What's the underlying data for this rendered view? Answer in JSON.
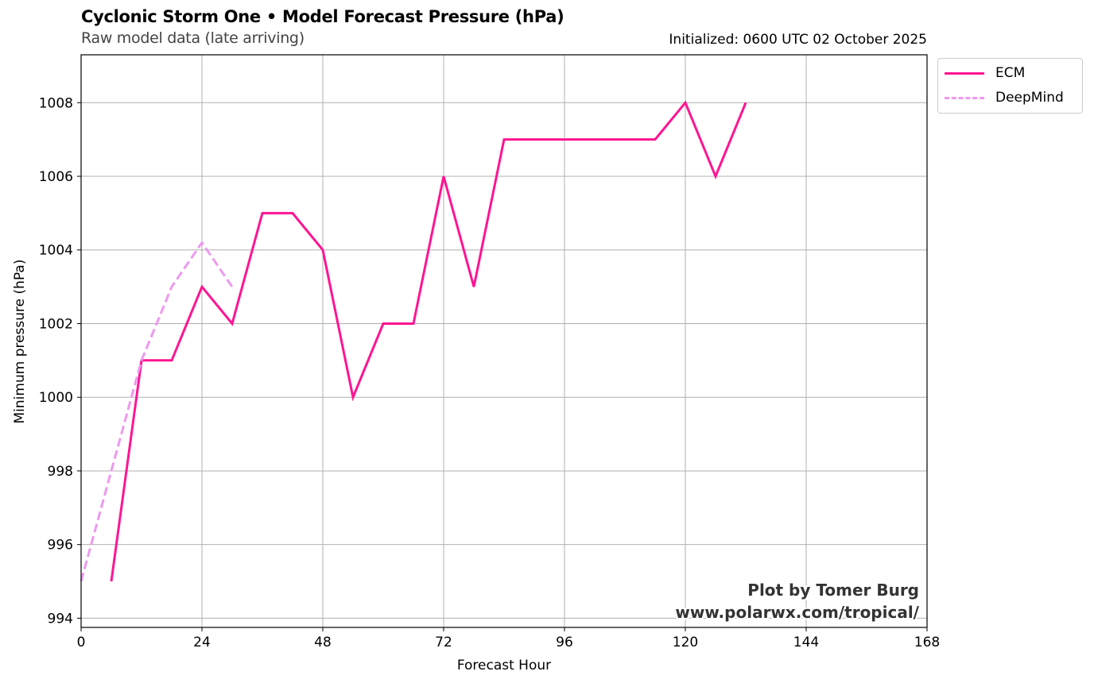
{
  "header": {
    "title": "Cyclonic Storm One • Model Forecast Pressure (hPa)",
    "subtitle": "Raw model data (late arriving)",
    "initialized": "Initialized: 0600 UTC 02 October 2025"
  },
  "watermark": {
    "line1": "Plot by Tomer Burg",
    "line2": "www.polarwx.com/tropical/"
  },
  "chart_data": {
    "type": "line",
    "title": "Cyclonic Storm One • Model Forecast Pressure (hPa)",
    "subtitle": "Raw model data (late arriving)",
    "xlabel": "Forecast Hour",
    "ylabel": "Minimum pressure (hPa)",
    "xlim": [
      0,
      168
    ],
    "ylim": [
      993.75,
      1009.3
    ],
    "xticks": [
      0,
      24,
      48,
      72,
      96,
      120,
      144,
      168
    ],
    "yticks": [
      994,
      996,
      998,
      1000,
      1002,
      1004,
      1006,
      1008
    ],
    "grid": true,
    "legend_position": "outside-top-right",
    "series": [
      {
        "name": "ECM",
        "color": "#ff1493",
        "style": "solid",
        "x": [
          6,
          12,
          18,
          24,
          30,
          36,
          42,
          48,
          54,
          60,
          66,
          72,
          78,
          84,
          90,
          96,
          102,
          108,
          114,
          120,
          126,
          132
        ],
        "y": [
          995,
          1001,
          1001,
          1003,
          1002,
          1005,
          1005,
          1004,
          1000,
          1002,
          1002,
          1006,
          1003,
          1007,
          1007,
          1007,
          1007,
          1007,
          1007,
          1008,
          1006,
          1008
        ]
      },
      {
        "name": "DeepMind",
        "color": "#ee99ee",
        "style": "dashed",
        "x": [
          0,
          6,
          12,
          18,
          24,
          30
        ],
        "y": [
          995,
          998,
          1001,
          1003,
          1004.2,
          1003
        ]
      }
    ]
  }
}
